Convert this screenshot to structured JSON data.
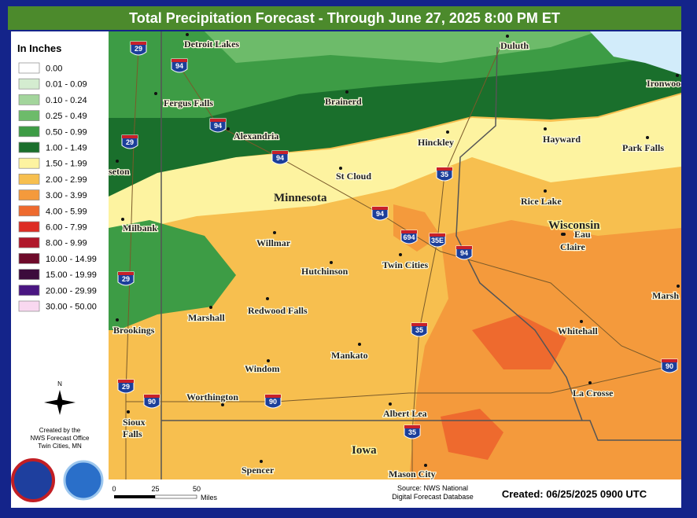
{
  "title": "Total Precipitation Forecast - Through June 27, 2025 8:00 PM ET",
  "legend": {
    "title": "In Inches",
    "items": [
      {
        "label": "0.00",
        "color": "#ffffff"
      },
      {
        "label": "0.01 - 0.09",
        "color": "#d4ecd0"
      },
      {
        "label": "0.10 - 0.24",
        "color": "#a3d59c"
      },
      {
        "label": "0.25 - 0.49",
        "color": "#6dbb6a"
      },
      {
        "label": "0.50 - 0.99",
        "color": "#3d9c45"
      },
      {
        "label": "1.00 - 1.49",
        "color": "#1a6f2c"
      },
      {
        "label": "1.50 - 1.99",
        "color": "#fdf3a0"
      },
      {
        "label": "2.00 - 2.99",
        "color": "#f7bf4f"
      },
      {
        "label": "3.00 - 3.99",
        "color": "#f49a3c"
      },
      {
        "label": "4.00 - 5.99",
        "color": "#ee6a2e"
      },
      {
        "label": "6.00 - 7.99",
        "color": "#dd2c24"
      },
      {
        "label": "8.00 - 9.99",
        "color": "#b0172a"
      },
      {
        "label": "10.00 - 14.99",
        "color": "#6e0a2a"
      },
      {
        "label": "15.00 - 19.99",
        "color": "#3c0b3c"
      },
      {
        "label": "20.00 - 29.99",
        "color": "#4a1682"
      },
      {
        "label": "30.00 - 50.00",
        "color": "#f9d8f0"
      }
    ]
  },
  "cities": [
    "Detroit Lakes",
    "Duluth",
    "Ironwood",
    "Fergus Falls",
    "Brainerd",
    "Alexandria",
    "Hinckley",
    "Hayward",
    "Park Falls",
    "seton",
    "St Cloud",
    "Rice Lake",
    "Milbank",
    "Willmar",
    "Eau",
    "Claire",
    "Hutchinson",
    "Twin Cities",
    "Marsh",
    "Brookings",
    "Marshall",
    "Redwood Falls",
    "Whitehall",
    "Mankato",
    "Windom",
    "Worthington",
    "La Crosse",
    "Sioux",
    "Falls",
    "Albert Lea",
    "Spencer",
    "Mason City"
  ],
  "states": [
    "Minnesota",
    "Wisconsin",
    "Iowa"
  ],
  "interstates": [
    29,
    94,
    94,
    29,
    94,
    35,
    94,
    694,
    "35E",
    94,
    29,
    35,
    90,
    29,
    90,
    90,
    35
  ],
  "north": "N",
  "credits": [
    "Created by the",
    "NWS Forecast Office",
    "Twin Cities, MN"
  ],
  "scale": {
    "ticks": [
      0,
      25,
      50
    ],
    "unit": "Miles"
  },
  "source": [
    "Source: NWS National",
    "Digital Forecast Database"
  ],
  "created": "Created: 06/25/2025 0900 UTC"
}
